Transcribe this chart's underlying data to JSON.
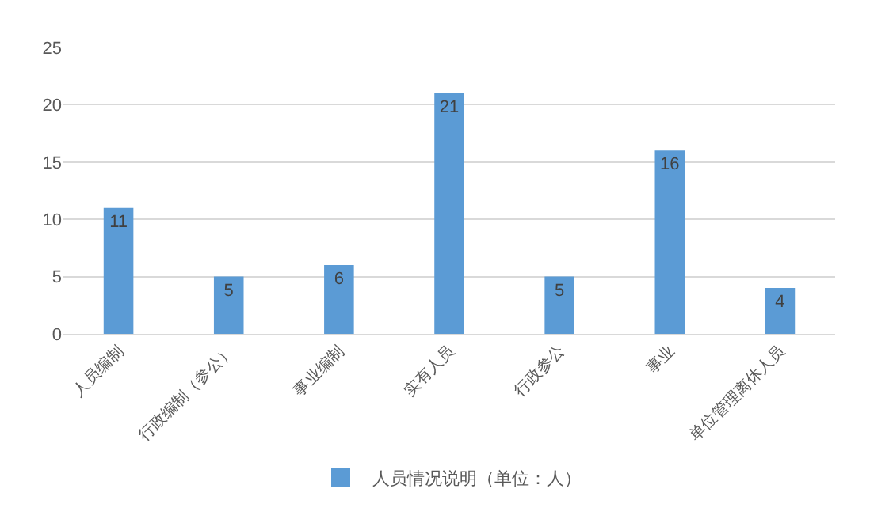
{
  "chart_data": {
    "type": "bar",
    "categories": [
      "人员编制",
      "行政编制（参公）",
      "事业编制",
      "实有人员",
      "行政参公",
      "事业",
      "单位管理离休人员"
    ],
    "series": [
      {
        "name": "人员情况说明（单位：人）",
        "color": "#5b9bd5",
        "values": [
          11,
          5,
          6,
          21,
          5,
          16,
          4
        ]
      }
    ],
    "ylim": [
      0,
      25
    ],
    "yticks": [
      0,
      5,
      10,
      15,
      20,
      25
    ],
    "grid": "y",
    "legend": "bottom",
    "data_labels": true
  }
}
